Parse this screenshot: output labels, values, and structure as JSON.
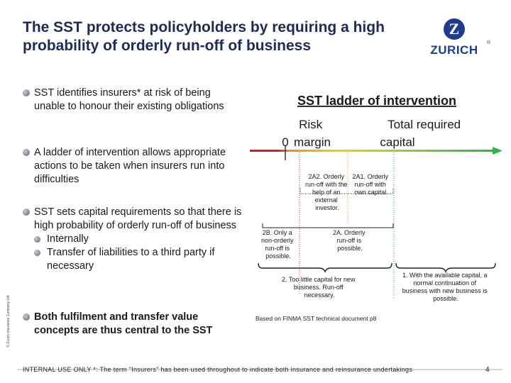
{
  "title": "The SST protects policyholders by requiring a high probability of orderly run-off of business",
  "logo": {
    "text": "ZURICH",
    "registered": "®",
    "mark": "Z"
  },
  "bullets": [
    {
      "text": "SST identifies insurers* at risk of being unable to honour their existing obligations"
    },
    {
      "text": "A ladder of intervention allows appropriate actions to be taken when insurers run into difficulties"
    },
    {
      "text": "SST sets capital requirements so that there is high probability of orderly run-off of business",
      "sub": [
        "Internally",
        "Transfer of liabilities to a third party if necessary"
      ]
    },
    {
      "text": "Both fulfilment and transfer value concepts are thus central to the SST"
    }
  ],
  "side_text": "© Zurich Insurance Company Ltd",
  "footer": "INTERNAL USE ONLY *: The term \"Insurers\" has been used throughout to indicate both insurance and reinsurance undertakings",
  "page_number": "4",
  "diagram": {
    "heading": "SST ladder of intervention",
    "zero": "0",
    "risk_margin": [
      "Risk",
      "margin"
    ],
    "total_capital": [
      "Total required",
      "capital"
    ],
    "box_2a2": [
      "2A2. Orderly",
      "run-off with the",
      "help of an",
      "external",
      "investor."
    ],
    "box_2a1": [
      "2A1. Orderly",
      "run-off with",
      "own capital."
    ],
    "box_2b": [
      "2B. Only a",
      "non-orderly",
      "run-off is",
      "possible."
    ],
    "box_2a": [
      "2A. Orderly",
      "run-off is",
      "possible."
    ],
    "box_2": [
      "2. Too little capital for new",
      "business. Run-off",
      "necessary."
    ],
    "box_1": [
      "1. With the available capital, a",
      "normal continuation of",
      "business with new business is",
      "possible."
    ],
    "colors": {
      "red": "#c0272d",
      "orange": "#f08a1c",
      "yellow": "#f5d000",
      "green": "#2fb34a"
    }
  },
  "source_note": "Based on FINMA SST technical document p8"
}
